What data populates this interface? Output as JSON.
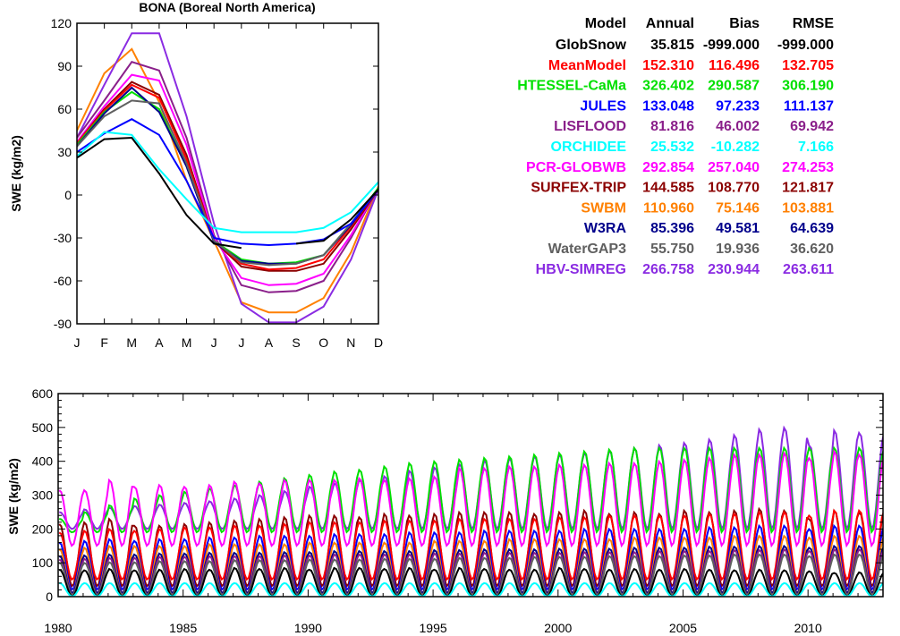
{
  "colors": {
    "GlobSnow": "#000000",
    "MeanModel": "#ff0000",
    "HTESSEL-CaMa": "#00e000",
    "JULES": "#0000ff",
    "LISFLOOD": "#8a1f8a",
    "ORCHIDEE": "#00ffff",
    "PCR-GLOBWB": "#ff00ff",
    "SURFEX-TRIP": "#8b0000",
    "SWBM": "#ff8000",
    "W3RA": "#00008b",
    "WaterGAP3": "#606060",
    "HBV-SIMREG": "#8a2be2"
  },
  "stats_table": {
    "headers": [
      "Model",
      "Annual",
      "Bias",
      "RMSE"
    ],
    "rows": [
      {
        "model": "GlobSnow",
        "annual": "35.815",
        "bias": "-999.000",
        "rmse": "-999.000"
      },
      {
        "model": "MeanModel",
        "annual": "152.310",
        "bias": "116.496",
        "rmse": "132.705"
      },
      {
        "model": "HTESSEL-CaMa",
        "annual": "326.402",
        "bias": "290.587",
        "rmse": "306.190"
      },
      {
        "model": "JULES",
        "annual": "133.048",
        "bias": "97.233",
        "rmse": "111.137"
      },
      {
        "model": "LISFLOOD",
        "annual": "81.816",
        "bias": "46.002",
        "rmse": "69.942"
      },
      {
        "model": "ORCHIDEE",
        "annual": "25.532",
        "bias": "-10.282",
        "rmse": "7.166"
      },
      {
        "model": "PCR-GLOBWB",
        "annual": "292.854",
        "bias": "257.040",
        "rmse": "274.253"
      },
      {
        "model": "SURFEX-TRIP",
        "annual": "144.585",
        "bias": "108.770",
        "rmse": "121.817"
      },
      {
        "model": "SWBM",
        "annual": "110.960",
        "bias": "75.146",
        "rmse": "103.881"
      },
      {
        "model": "W3RA",
        "annual": "85.396",
        "bias": "49.581",
        "rmse": "64.639"
      },
      {
        "model": "WaterGAP3",
        "annual": "55.750",
        "bias": "19.936",
        "rmse": "36.620"
      },
      {
        "model": "HBV-SIMREG",
        "annual": "266.758",
        "bias": "230.944",
        "rmse": "263.611"
      }
    ]
  },
  "chart_data": [
    {
      "type": "line",
      "title": "BONA (Boreal North America)",
      "ylabel": "SWE (kg/m2)",
      "xlabel": "",
      "categories": [
        "J",
        "F",
        "M",
        "A",
        "M",
        "J",
        "J",
        "A",
        "S",
        "O",
        "N",
        "D"
      ],
      "yticks": [
        120,
        90,
        60,
        30,
        0,
        -30,
        -60,
        -90
      ],
      "ylim": [
        -90,
        120
      ],
      "series": [
        {
          "name": "SWBM",
          "values": [
            45,
            85,
            102,
            65,
            10,
            -32,
            -75,
            -82,
            -82,
            -72,
            -40,
            6
          ]
        },
        {
          "name": "HBV-SIMREG",
          "values": [
            40,
            77,
            113,
            113,
            55,
            -20,
            -76,
            -89,
            -89,
            -78,
            -45,
            4
          ]
        },
        {
          "name": "LISFLOOD",
          "values": [
            40,
            66,
            93,
            87,
            40,
            -28,
            -63,
            -68,
            -67,
            -60,
            -30,
            5
          ]
        },
        {
          "name": "PCR-GLOBWB",
          "values": [
            37,
            62,
            84,
            80,
            35,
            -30,
            -58,
            -63,
            -62,
            -55,
            -28,
            5
          ]
        },
        {
          "name": "SURFEX-TRIP",
          "values": [
            36,
            60,
            79,
            70,
            28,
            -32,
            -50,
            -53,
            -53,
            -48,
            -24,
            4
          ]
        },
        {
          "name": "MeanModel",
          "values": [
            36,
            59,
            77,
            68,
            25,
            -32,
            -48,
            -52,
            -51,
            -45,
            -22,
            4
          ]
        },
        {
          "name": "HTESSEL-CaMa",
          "values": [
            35,
            58,
            72,
            60,
            20,
            -32,
            -45,
            -48,
            -47,
            -42,
            -20,
            5
          ]
        },
        {
          "name": "W3RA",
          "values": [
            34,
            57,
            75,
            58,
            20,
            -33,
            -46,
            -48,
            -48,
            -42,
            -21,
            4
          ]
        },
        {
          "name": "WaterGAP3",
          "values": [
            34,
            55,
            66,
            64,
            22,
            -32,
            -47,
            -49,
            -48,
            -42,
            -20,
            4
          ]
        },
        {
          "name": "JULES",
          "values": [
            30,
            43,
            53,
            42,
            10,
            -30,
            -34,
            -35,
            -34,
            -31,
            -20,
            4
          ]
        },
        {
          "name": "ORCHIDEE",
          "values": [
            27,
            44,
            42,
            18,
            -3,
            -23,
            -26,
            -26,
            -26,
            -23,
            -12,
            9
          ]
        },
        {
          "name": "GlobSnow",
          "values": [
            26,
            39,
            40,
            15,
            -14,
            -34,
            -37,
            null,
            -34,
            -32,
            -17,
            4
          ]
        }
      ]
    },
    {
      "type": "line",
      "title": "",
      "ylabel": "SWE (kg/m2)",
      "xlabel": "",
      "xlim": [
        1980,
        2013
      ],
      "xticks": [
        1980,
        1985,
        1990,
        1995,
        2000,
        2005,
        2010
      ],
      "ylim": [
        0,
        600
      ],
      "yticks": [
        0,
        100,
        200,
        300,
        400,
        500,
        600
      ],
      "series": [
        {
          "name": "HBV-SIMREG",
          "summer_min": 200,
          "winter_peaks": [
            250,
            258,
            263,
            268,
            272,
            277,
            282,
            290,
            300,
            312,
            325,
            335,
            345,
            356,
            372,
            382,
            392,
            402,
            409,
            415,
            420,
            425,
            432,
            440,
            448,
            455,
            465,
            478,
            495,
            500,
            448,
            492,
            485
          ]
        },
        {
          "name": "HTESSEL-CaMa",
          "summer_min": 190,
          "winter_peaks": [
            230,
            250,
            270,
            290,
            300,
            310,
            320,
            330,
            340,
            350,
            360,
            370,
            375,
            385,
            395,
            400,
            405,
            410,
            415,
            420,
            425,
            430,
            435,
            440,
            440,
            440,
            440,
            440,
            440,
            440,
            440,
            440,
            440
          ]
        },
        {
          "name": "PCR-GLOBWB",
          "summer_min": 150,
          "winter_peaks": [
            315,
            315,
            345,
            325,
            330,
            325,
            330,
            340,
            335,
            345,
            345,
            345,
            350,
            345,
            350,
            355,
            380,
            380,
            385,
            385,
            390,
            390,
            395,
            395,
            400,
            405,
            410,
            420,
            420,
            425,
            410,
            430,
            420
          ]
        },
        {
          "name": "SURFEX-TRIP",
          "summer_min": 30,
          "winter_peaks": [
            215,
            220,
            230,
            210,
            210,
            215,
            220,
            225,
            230,
            235,
            240,
            240,
            235,
            245,
            240,
            245,
            250,
            250,
            250,
            245,
            250,
            255,
            245,
            250,
            245,
            255,
            250,
            255,
            260,
            255,
            230,
            255,
            250
          ]
        },
        {
          "name": "MeanModel",
          "summer_min": 50,
          "winter_peaks": [
            190,
            195,
            200,
            195,
            200,
            205,
            205,
            210,
            210,
            215,
            220,
            220,
            220,
            225,
            225,
            225,
            230,
            230,
            230,
            230,
            235,
            235,
            240,
            240,
            240,
            240,
            245,
            245,
            250,
            250,
            240,
            255,
            255
          ]
        },
        {
          "name": "JULES",
          "summer_min": 20,
          "winter_peaks": [
            160,
            165,
            170,
            165,
            170,
            170,
            175,
            175,
            180,
            180,
            180,
            185,
            185,
            185,
            190,
            190,
            190,
            195,
            195,
            195,
            195,
            200,
            200,
            200,
            200,
            200,
            205,
            205,
            210,
            210,
            200,
            210,
            210
          ]
        },
        {
          "name": "SWBM",
          "summer_min": 10,
          "winter_peaks": [
            140,
            145,
            150,
            150,
            150,
            150,
            155,
            155,
            155,
            155,
            160,
            160,
            160,
            160,
            160,
            165,
            165,
            165,
            170,
            170,
            170,
            170,
            170,
            175,
            175,
            175,
            175,
            180,
            180,
            180,
            175,
            180,
            180
          ]
        },
        {
          "name": "W3RA",
          "summer_min": 10,
          "winter_peaks": [
            120,
            122,
            125,
            125,
            128,
            128,
            130,
            130,
            130,
            132,
            132,
            135,
            135,
            135,
            135,
            138,
            138,
            140,
            140,
            140,
            142,
            142,
            142,
            145,
            145,
            145,
            148,
            148,
            150,
            150,
            145,
            150,
            150
          ]
        },
        {
          "name": "LISFLOOD",
          "summer_min": 5,
          "winter_peaks": [
            110,
            112,
            115,
            115,
            118,
            118,
            120,
            120,
            120,
            122,
            122,
            125,
            125,
            125,
            125,
            128,
            128,
            130,
            130,
            130,
            130,
            132,
            132,
            132,
            135,
            135,
            135,
            138,
            138,
            140,
            135,
            140,
            140
          ]
        },
        {
          "name": "WaterGAP3",
          "summer_min": 5,
          "winter_peaks": [
            100,
            100,
            102,
            102,
            105,
            105,
            105,
            108,
            108,
            108,
            110,
            110,
            110,
            112,
            112,
            112,
            115,
            115,
            115,
            118,
            118,
            118,
            120,
            120,
            120,
            122,
            122,
            125,
            125,
            125,
            120,
            125,
            125
          ]
        },
        {
          "name": "GlobSnow",
          "summer_min": 0,
          "winter_peaks": [
            80,
            78,
            82,
            78,
            80,
            82,
            80,
            85,
            82,
            85,
            80,
            85,
            85,
            82,
            85,
            80,
            85,
            82,
            80,
            80,
            85,
            82,
            80,
            82,
            80,
            82,
            80,
            78,
            80,
            78,
            75,
            70,
            72
          ]
        },
        {
          "name": "ORCHIDEE",
          "summer_min": 0,
          "winter_peaks": [
            40,
            40,
            40,
            40,
            40,
            40,
            40,
            40,
            40,
            40,
            40,
            40,
            40,
            40,
            40,
            40,
            40,
            40,
            40,
            40,
            40,
            40,
            40,
            40,
            40,
            40,
            40,
            40,
            40,
            40,
            40,
            40,
            40
          ]
        }
      ]
    }
  ]
}
